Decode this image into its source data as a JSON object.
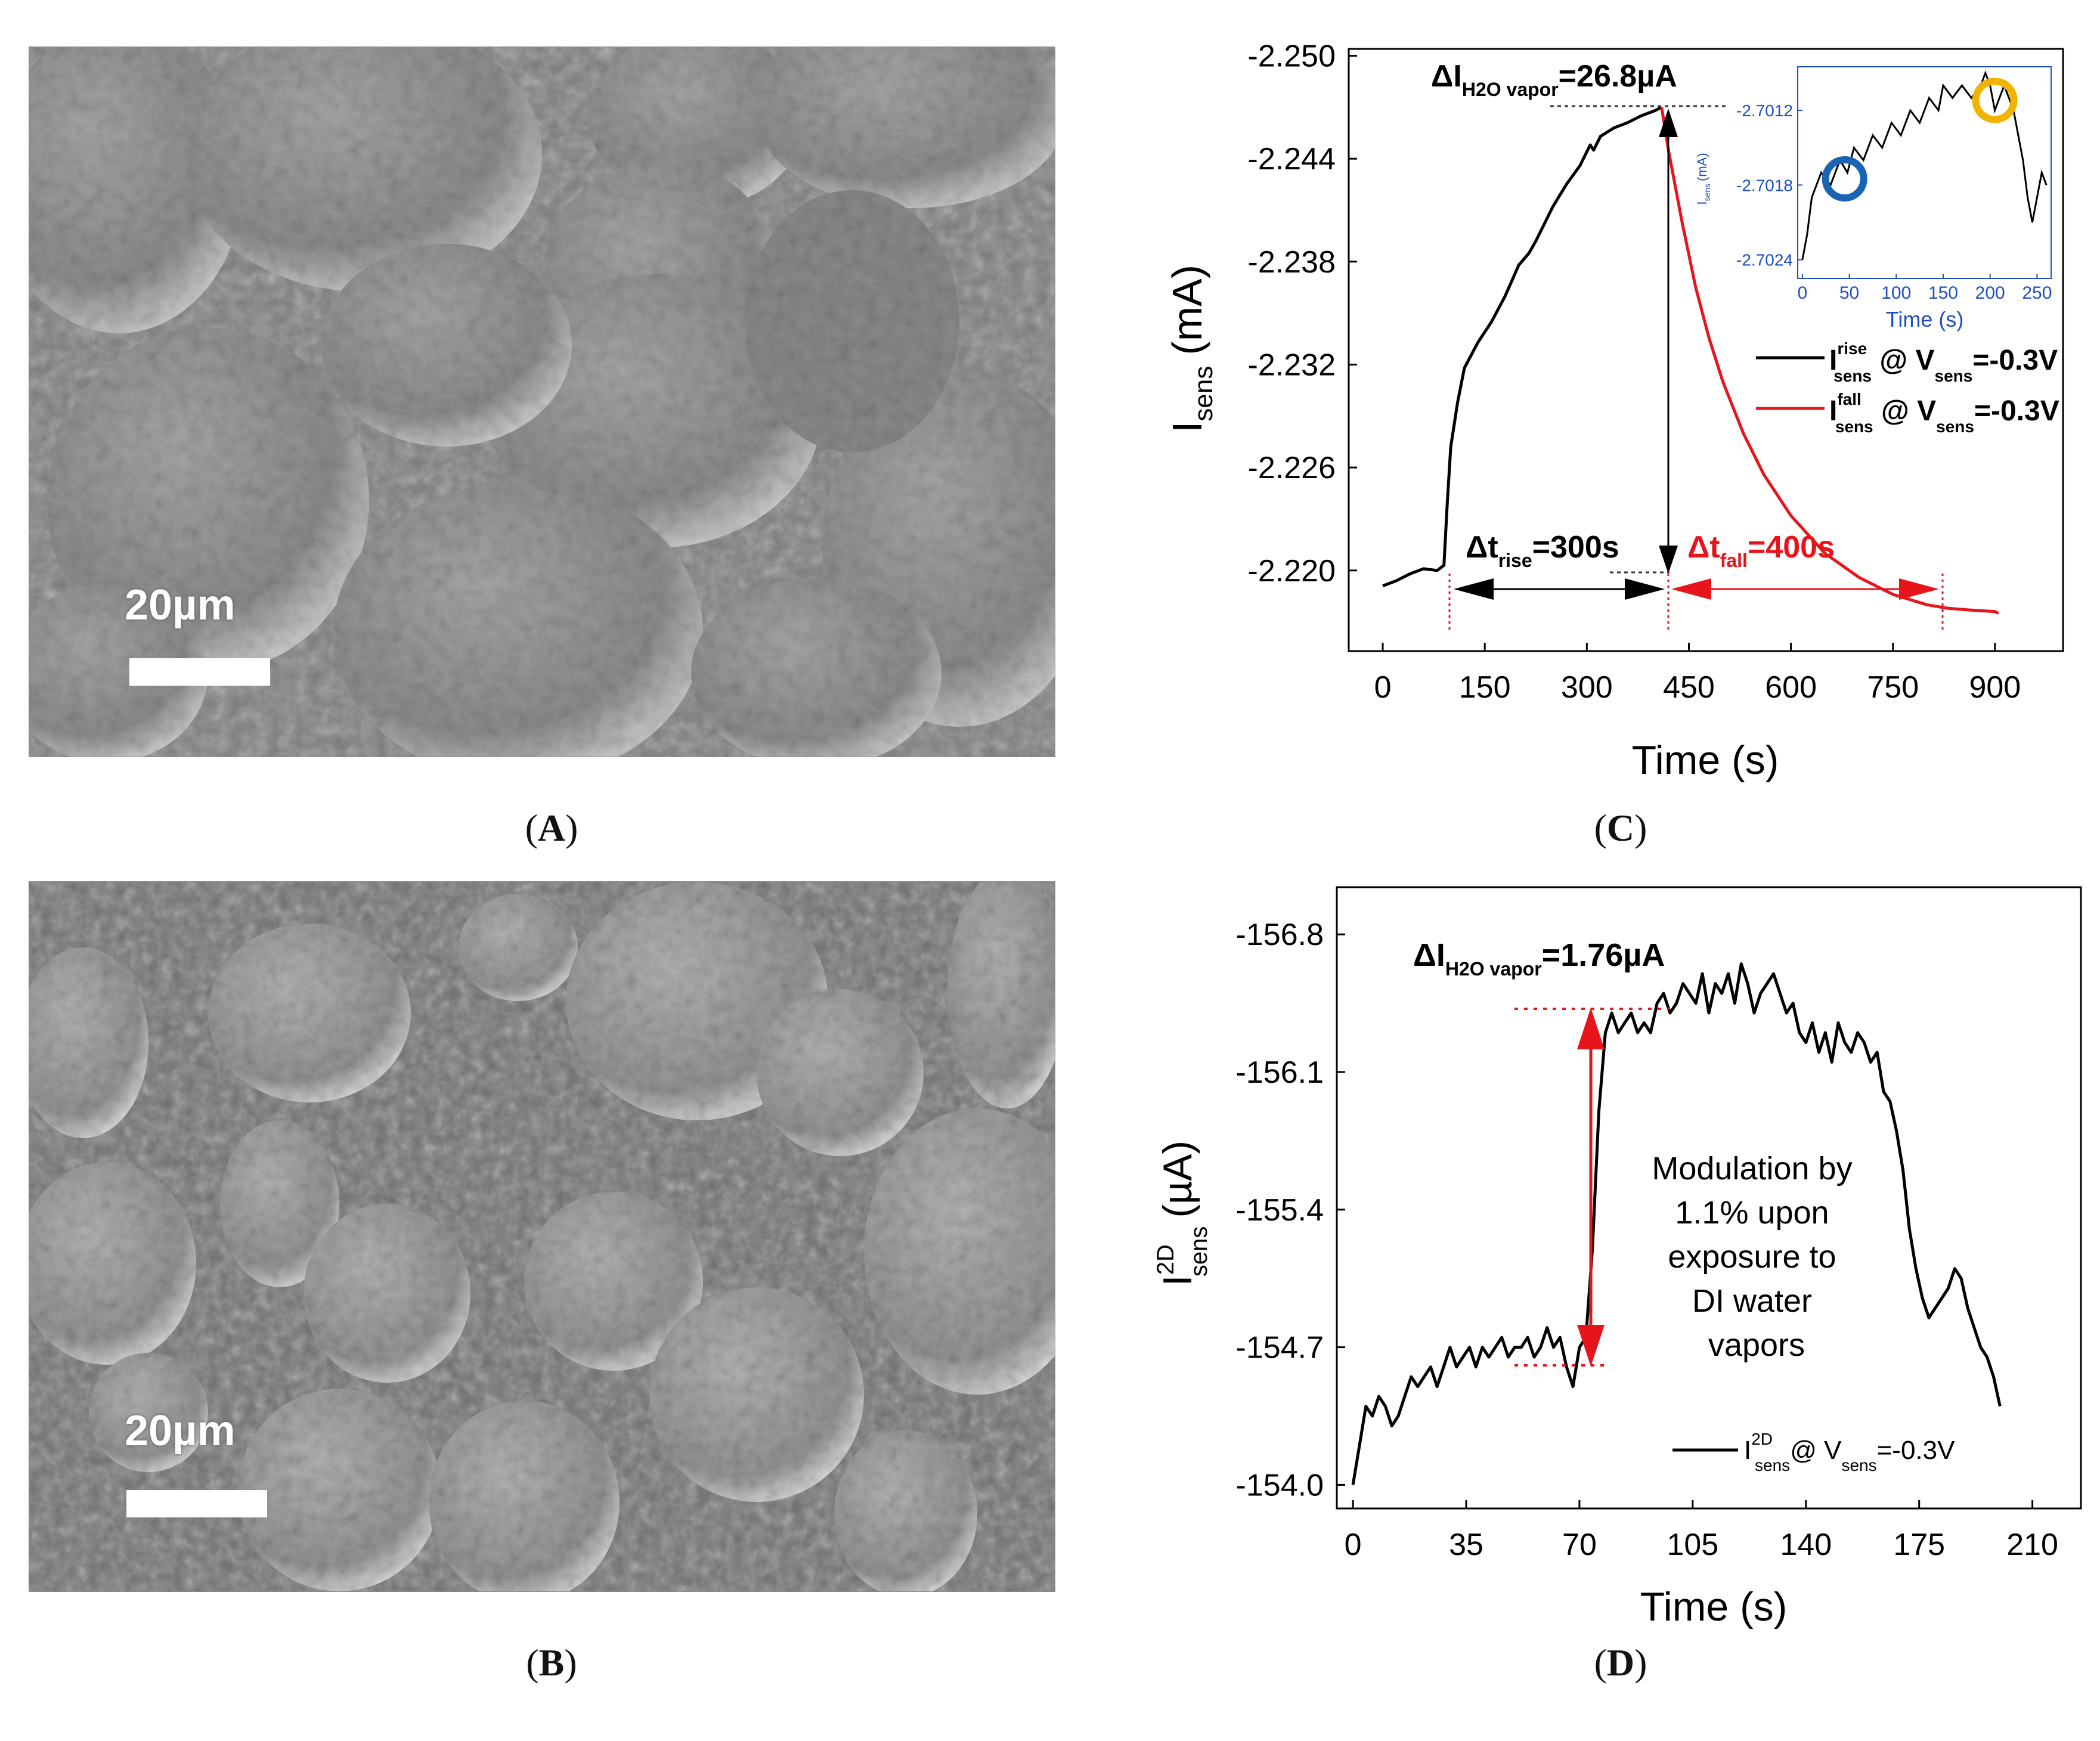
{
  "panels": {
    "A": {
      "label": "A",
      "scale_label": "20µm"
    },
    "B": {
      "label": "B",
      "scale_label": "20µm"
    },
    "C": {
      "label": "C"
    },
    "D": {
      "label": "D"
    }
  },
  "chart_data": [
    {
      "id": "C",
      "type": "line",
      "xlabel": "Time (s)",
      "ylabel": "I",
      "ylabel_sub": "sens",
      "ylabel_unit": "(mA)",
      "xlim": [
        -50,
        1000
      ],
      "ylim": [
        -2.2153,
        -2.2504
      ],
      "xticks": [
        0,
        150,
        300,
        450,
        600,
        750,
        900
      ],
      "yticks": [
        -2.25,
        -2.244,
        -2.238,
        -2.232,
        -2.226,
        -2.22
      ],
      "ytick_labels": [
        "-2.250",
        "-2.244",
        "-2.238",
        "-2.232",
        "-2.226",
        "-2.220"
      ],
      "series": [
        {
          "name": "rise",
          "color": "#000000",
          "x": [
            0,
            20,
            40,
            60,
            80,
            90,
            95,
            100,
            110,
            120,
            140,
            160,
            180,
            200,
            215,
            225,
            235,
            250,
            270,
            290,
            305,
            310,
            320,
            340,
            360,
            380,
            400,
            410
          ],
          "y": [
            -2.2191,
            -2.2194,
            -2.2198,
            -2.2201,
            -2.22,
            -2.2203,
            -2.224,
            -2.2272,
            -2.2298,
            -2.2318,
            -2.2333,
            -2.2345,
            -2.236,
            -2.2378,
            -2.2385,
            -2.2392,
            -2.24,
            -2.2412,
            -2.2425,
            -2.2436,
            -2.2448,
            -2.2445,
            -2.2453,
            -2.2458,
            -2.2461,
            -2.2465,
            -2.2468,
            -2.247
          ]
        },
        {
          "name": "fall",
          "color": "#e8141b",
          "x": [
            410,
            420,
            440,
            460,
            480,
            500,
            530,
            560,
            600,
            650,
            700,
            750,
            800,
            830,
            860,
            900,
            905
          ],
          "y": [
            -2.247,
            -2.2445,
            -2.2403,
            -2.2365,
            -2.2335,
            -2.231,
            -2.228,
            -2.2256,
            -2.2232,
            -2.221,
            -2.2196,
            -2.2186,
            -2.218,
            -2.2178,
            -2.2177,
            -2.2176,
            -2.2175
          ]
        }
      ],
      "annotations": {
        "delta_i": {
          "prefix": "ΔI",
          "sub": "H2O vapor",
          "value": "=26.8µA"
        },
        "delta_t_rise": {
          "prefix": "Δt",
          "sub": "rise",
          "value": "=300s"
        },
        "delta_t_fall": {
          "prefix": "Δt",
          "sub": "fall",
          "value": "=400s"
        }
      },
      "legend": [
        {
          "symbol": "I",
          "sup": "rise",
          "sub": "sens",
          "text": " @ V",
          "vsub": "sens",
          "value": "=-0.3V",
          "color": "#000000"
        },
        {
          "symbol": "I",
          "sup": "fall",
          "sub": "sens",
          "text": " @ V",
          "vsub": "sens",
          "value": "=-0.3V",
          "color": "#e8141b"
        }
      ],
      "inset": {
        "xlabel": "Time (s)",
        "ylabel": "I",
        "ylabel_sub": "sens",
        "ylabel_unit": "(mA)",
        "xlim": [
          -5,
          265
        ],
        "ylim": [
          -2.70255,
          -2.70085
        ],
        "xticks": [
          0,
          50,
          100,
          150,
          200,
          250
        ],
        "yticks": [
          -2.7012,
          -2.7018,
          -2.7024
        ],
        "ytick_labels": [
          "-2.7012",
          "-2.7018",
          "-2.7024"
        ],
        "axis_color": "#1f4fbf",
        "x": [
          0,
          5,
          10,
          15,
          20,
          30,
          40,
          48,
          55,
          65,
          75,
          85,
          95,
          105,
          115,
          125,
          135,
          145,
          150,
          160,
          170,
          180,
          190,
          195,
          200,
          205,
          210,
          215,
          220,
          225,
          230,
          235,
          240,
          245,
          250,
          255,
          260
        ],
        "y": [
          -2.7024,
          -2.7022,
          -2.7019,
          -2.7018,
          -2.7017,
          -2.7018,
          -2.7016,
          -2.7017,
          -2.7015,
          -2.7016,
          -2.7014,
          -2.7015,
          -2.7013,
          -2.7014,
          -2.7012,
          -2.7013,
          -2.7011,
          -2.7012,
          -2.701,
          -2.7011,
          -2.701,
          -2.7011,
          -2.701,
          -2.7009,
          -2.701,
          -2.7012,
          -2.7011,
          -2.701,
          -2.7011,
          -2.7012,
          -2.7014,
          -2.7016,
          -2.7019,
          -2.7021,
          -2.7019,
          -2.7017,
          -2.7018
        ],
        "circles": [
          {
            "x": 45,
            "y": -2.70175,
            "color": "#1a64b4"
          },
          {
            "x": 205,
            "y": -2.70112,
            "color": "#f0b400"
          }
        ]
      }
    },
    {
      "id": "D",
      "type": "line",
      "xlabel": "Time (s)",
      "ylabel": "I",
      "ylabel_sup": "2D",
      "ylabel_sub": "sens",
      "ylabel_unit": "(µA)",
      "xlim": [
        -5,
        225
      ],
      "ylim": [
        -153.88,
        -157.04
      ],
      "xticks": [
        0,
        35,
        70,
        105,
        140,
        175,
        210
      ],
      "yticks": [
        -156.8,
        -156.1,
        -155.4,
        -154.7,
        -154.0
      ],
      "ytick_labels": [
        "-156.8",
        "-156.1",
        "-155.4",
        "-154.7",
        "-154.0"
      ],
      "series": [
        {
          "name": "I2D_sens",
          "color": "#000000",
          "x": [
            0,
            2,
            4,
            6,
            8,
            10,
            12,
            14,
            16,
            18,
            20,
            22,
            24,
            26,
            28,
            30,
            32,
            34,
            36,
            38,
            40,
            42,
            44,
            46,
            48,
            50,
            52,
            54,
            56,
            58,
            60,
            62,
            64,
            66,
            68,
            70,
            72,
            74,
            76,
            78,
            80,
            82,
            84,
            86,
            88,
            90,
            92,
            94,
            96,
            98,
            100,
            102,
            104,
            106,
            108,
            110,
            112,
            114,
            116,
            118,
            120,
            122,
            124,
            126,
            128,
            130,
            132,
            134,
            136,
            138,
            140,
            142,
            144,
            146,
            148,
            150,
            152,
            154,
            156,
            158,
            160,
            162,
            164,
            166,
            168,
            170,
            172,
            174,
            176,
            178,
            180,
            182,
            184,
            186,
            188,
            190,
            192,
            194,
            196,
            198,
            200
          ],
          "y": [
            -154.0,
            -154.2,
            -154.4,
            -154.35,
            -154.45,
            -154.4,
            -154.3,
            -154.35,
            -154.45,
            -154.55,
            -154.5,
            -154.55,
            -154.6,
            -154.5,
            -154.6,
            -154.7,
            -154.6,
            -154.65,
            -154.7,
            -154.6,
            -154.7,
            -154.65,
            -154.7,
            -154.75,
            -154.65,
            -154.7,
            -154.7,
            -154.75,
            -154.65,
            -154.7,
            -154.8,
            -154.7,
            -154.75,
            -154.6,
            -154.5,
            -154.7,
            -154.75,
            -155.2,
            -155.9,
            -156.3,
            -156.4,
            -156.3,
            -156.35,
            -156.4,
            -156.3,
            -156.35,
            -156.3,
            -156.45,
            -156.5,
            -156.4,
            -156.45,
            -156.55,
            -156.5,
            -156.45,
            -156.6,
            -156.4,
            -156.55,
            -156.5,
            -156.6,
            -156.45,
            -156.65,
            -156.55,
            -156.4,
            -156.5,
            -156.55,
            -156.6,
            -156.5,
            -156.4,
            -156.45,
            -156.3,
            -156.25,
            -156.35,
            -156.2,
            -156.3,
            -156.15,
            -156.35,
            -156.25,
            -156.2,
            -156.3,
            -156.25,
            -156.15,
            -156.2,
            -156.0,
            -155.95,
            -155.8,
            -155.6,
            -155.3,
            -155.1,
            -154.95,
            -154.85,
            -154.9,
            -154.95,
            -155.0,
            -155.1,
            -155.05,
            -154.9,
            -154.8,
            -154.7,
            -154.65,
            -154.55,
            -154.4
          ]
        }
      ],
      "annotations": {
        "delta_i": {
          "prefix": "ΔI",
          "sub": "H2O vapor",
          "value": "=1.76µA"
        },
        "modulation_text": [
          "Modulation by",
          "1.1% upon",
          "exposure to",
          "DI water",
          "vapors"
        ]
      },
      "legend": [
        {
          "symbol": "I",
          "sup": "2D",
          "sub": "sens",
          "text": "@ V",
          "vsub": "sens",
          "value": "=-0.3V",
          "color": "#000000"
        }
      ]
    }
  ]
}
